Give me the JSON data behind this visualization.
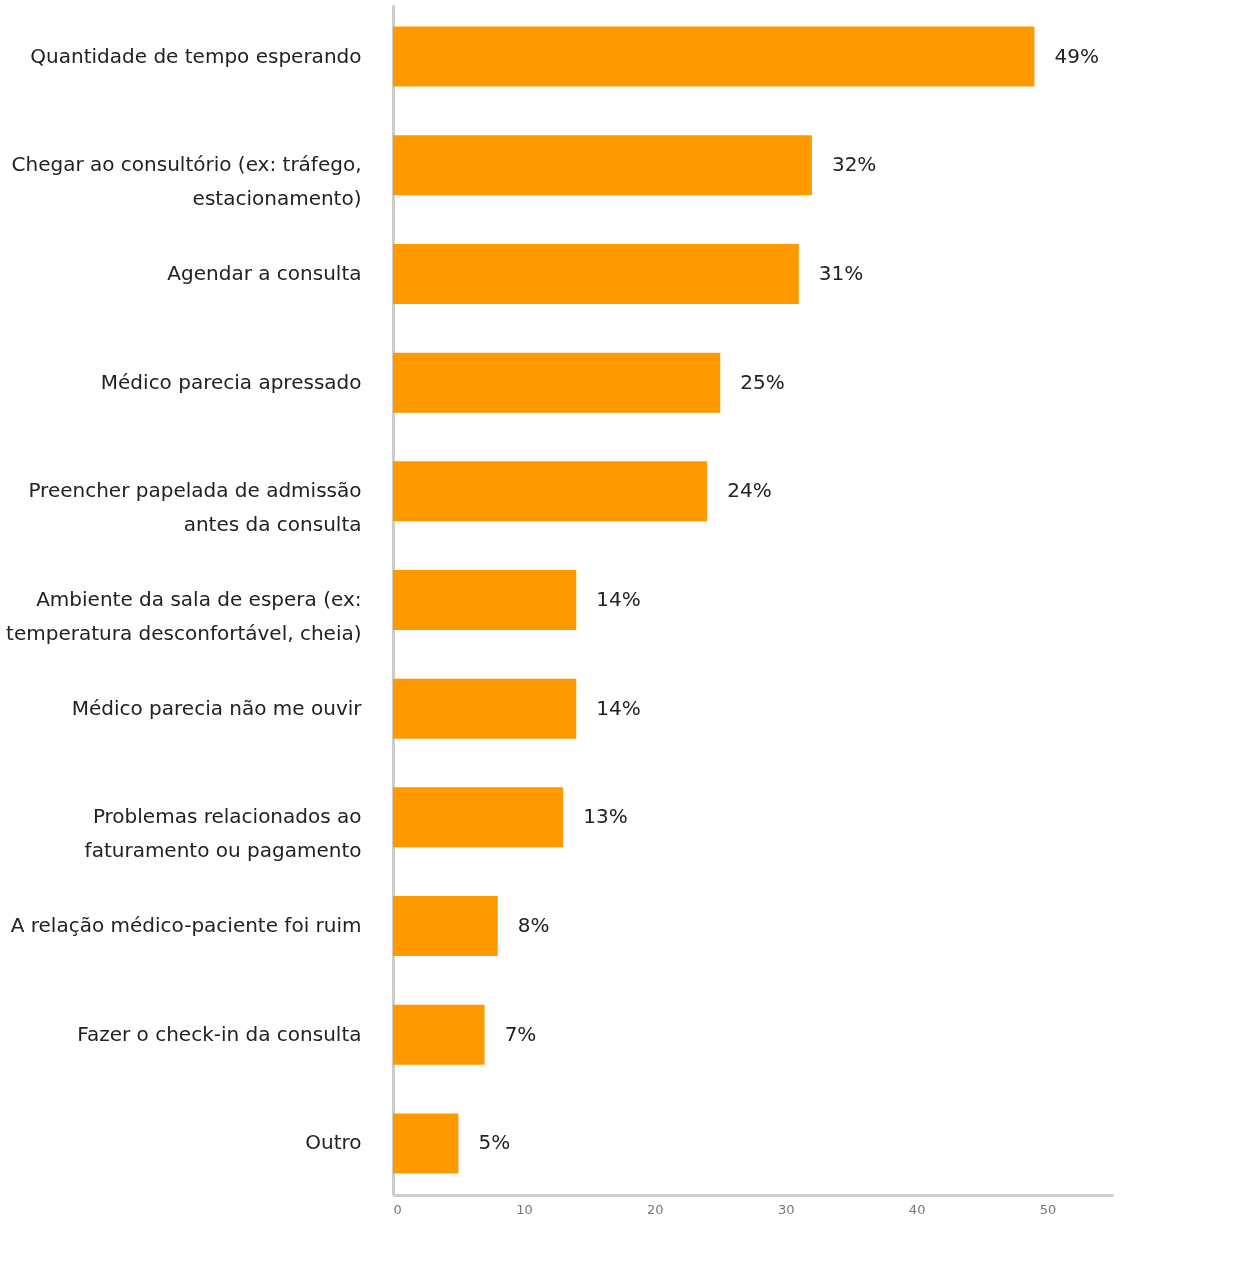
{
  "chart_data": {
    "type": "bar",
    "orientation": "horizontal",
    "categories": [
      "Quantidade de tempo esperando",
      "Chegar ao consultório (ex: tráfego, estacionamento)",
      "Agendar a consulta",
      "Médico parecia apressado",
      "Preencher papelada de admissão antes da consulta",
      "Ambiente da sala de espera (ex: temperatura desconfortável, cheia)",
      "Médico parecia não me ouvir",
      "Problemas relacionados ao faturamento ou pagamento",
      "A relação médico-paciente foi ruim",
      "Fazer o check-in da consulta",
      "Outro"
    ],
    "values": [
      49,
      32,
      31,
      25,
      24,
      14,
      14,
      13,
      8,
      7,
      5
    ],
    "value_labels": [
      "49%",
      "32%",
      "31%",
      "25%",
      "24%",
      "14%",
      "14%",
      "13%",
      "8%",
      "7%",
      "5%"
    ],
    "color": "#ff9900",
    "xlim": [
      0,
      55
    ],
    "xticks": [
      0,
      10,
      20,
      30,
      40,
      50
    ],
    "grid": false
  }
}
